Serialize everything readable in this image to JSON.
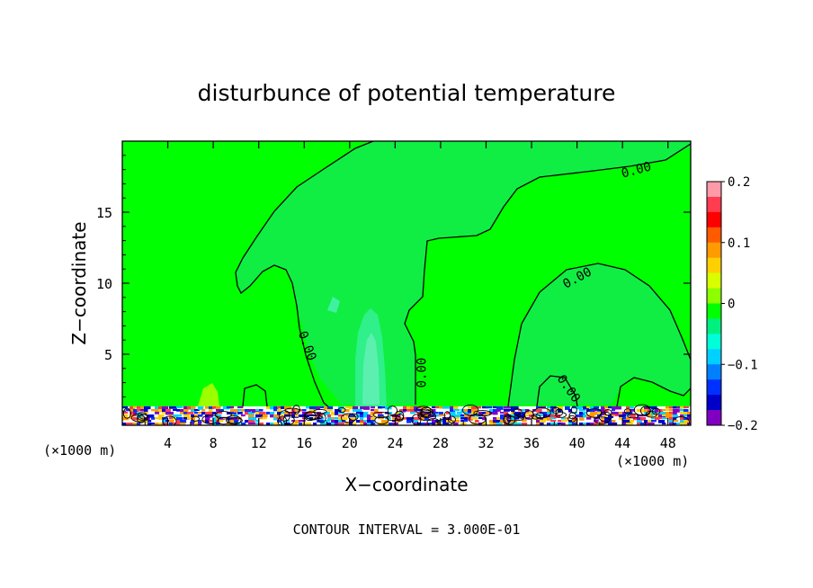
{
  "chart_data": {
    "type": "heatmap",
    "title": "disturbunce of potential temperature",
    "xlabel": "X−coordinate",
    "ylabel": "Z−coordinate",
    "x_unit": "(×1000 m)",
    "y_unit": "(×1000 m)",
    "xlim": [
      0,
      50
    ],
    "ylim": [
      0,
      20
    ],
    "x_ticks": [
      4,
      8,
      12,
      16,
      20,
      24,
      28,
      32,
      36,
      40,
      44,
      48
    ],
    "y_ticks": [
      5,
      10,
      15
    ],
    "contour_interval_text": "CONTOUR INTERVAL = 3.000E-01",
    "contour_labels": [
      {
        "text": "0.00",
        "x": 45.2,
        "y": 18.0
      },
      {
        "text": "0.00",
        "x": 40.0,
        "y": 10.4
      },
      {
        "text": "0.00",
        "x": 16.3,
        "y": 5.6
      },
      {
        "text": "0.00",
        "x": 26.3,
        "y": 3.7
      },
      {
        "text": "0.00",
        "x": 39.3,
        "y": 2.6
      }
    ],
    "colorbar": {
      "min": -0.2,
      "max": 0.2,
      "tick_labels": [
        "0.2",
        "0.1",
        "0",
        "−0.1",
        "−0.2"
      ],
      "tick_values": [
        0.2,
        0.1,
        0,
        -0.1,
        -0.2
      ],
      "colors": [
        "#ff9aa8",
        "#ff3c50",
        "#ff0000",
        "#ff5a00",
        "#ff9a00",
        "#ffd000",
        "#d8ff00",
        "#8cff00",
        "#00ff00",
        "#00f080",
        "#00ffd8",
        "#00d0ff",
        "#0080ff",
        "#0030ff",
        "#0000c8",
        "#8000c0"
      ]
    },
    "fields": {
      "background_value": 0.0,
      "regions": [
        {
          "value": -0.02,
          "shape": "left-plume"
        },
        {
          "value": -0.02,
          "shape": "center-tower"
        },
        {
          "value": -0.02,
          "shape": "right-anvil"
        },
        {
          "value": -0.05,
          "shape": "central-updraft"
        }
      ]
    }
  }
}
